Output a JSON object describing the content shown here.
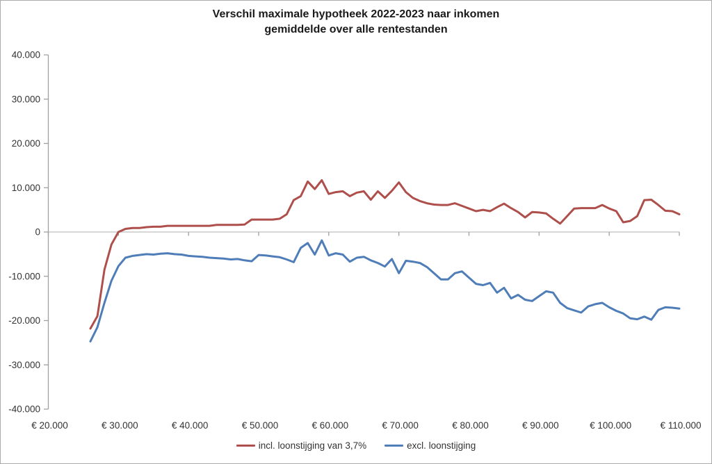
{
  "title": "Verschil maximale hypotheek 2022-2023 naar inkomen",
  "subtitle": "gemiddelde over alle rentestanden",
  "legend": {
    "incl_label": "incl. loonstijging van 3,7%",
    "excl_label": "excl. loonstijging"
  },
  "colors": {
    "incl_series": "#AE4F4B",
    "excl_series": "#4E7DB7",
    "zero_line": "#BFBFBF",
    "axis": "#A0A0A0",
    "text": "#333333"
  },
  "chart_data": {
    "type": "line",
    "title": "Verschil maximale hypotheek 2022-2023 naar inkomen",
    "subtitle": "gemiddelde over alle rentestanden",
    "xlabel": "",
    "ylabel": "",
    "grid": "zero-line-only",
    "legend_position": "bottom-center",
    "x_axis": {
      "min": 20000,
      "max": 110000,
      "step": 10000,
      "tick_labels": [
        "€ 20.000",
        "€ 30.000",
        "€ 40.000",
        "€ 50.000",
        "€ 60.000",
        "€ 70.000",
        "€ 80.000",
        "€ 90.000",
        "€ 100.000",
        "€ 110.000"
      ]
    },
    "y_axis": {
      "min": -40000,
      "max": 40000,
      "step": 10000,
      "tick_labels": [
        "40.000",
        "30.000",
        "20.000",
        "10.000",
        "0",
        "-10.000",
        "-20.000",
        "-30.000",
        "-40.000"
      ]
    },
    "x": [
      26000,
      27000,
      28000,
      29000,
      30000,
      31000,
      32000,
      33000,
      34000,
      35000,
      36000,
      37000,
      38000,
      39000,
      40000,
      41000,
      42000,
      43000,
      44000,
      45000,
      46000,
      47000,
      48000,
      49000,
      50000,
      51000,
      52000,
      53000,
      54000,
      55000,
      56000,
      57000,
      58000,
      59000,
      60000,
      61000,
      62000,
      63000,
      64000,
      65000,
      66000,
      67000,
      68000,
      69000,
      70000,
      71000,
      72000,
      73000,
      74000,
      75000,
      76000,
      77000,
      78000,
      79000,
      80000,
      81000,
      82000,
      83000,
      84000,
      85000,
      86000,
      87000,
      88000,
      89000,
      90000,
      91000,
      92000,
      93000,
      94000,
      95000,
      96000,
      97000,
      98000,
      99000,
      100000,
      101000,
      102000,
      103000,
      104000,
      105000,
      106000,
      107000,
      108000,
      109000,
      110000
    ],
    "series": [
      {
        "name": "incl. loonstijging van 3,7%",
        "color": "#AE4F4B",
        "values": [
          -21800,
          -19000,
          -8500,
          -2800,
          0,
          700,
          900,
          900,
          1100,
          1200,
          1200,
          1400,
          1400,
          1400,
          1400,
          1400,
          1400,
          1400,
          1600,
          1600,
          1600,
          1600,
          1700,
          2800,
          2800,
          2800,
          2800,
          3000,
          4000,
          7200,
          8100,
          11400,
          9700,
          11700,
          8600,
          9000,
          9200,
          8100,
          8900,
          9200,
          7300,
          9200,
          7700,
          9300,
          11200,
          9000,
          7700,
          7000,
          6500,
          6200,
          6100,
          6100,
          6500,
          5900,
          5300,
          4700,
          5000,
          4700,
          5600,
          6400,
          5400,
          4500,
          3300,
          4500,
          4400,
          4200,
          3000,
          1900,
          3600,
          5300,
          5400,
          5400,
          5400,
          6100,
          5300,
          4700,
          2200,
          2500,
          3600,
          7200,
          7300,
          6100,
          4800,
          4700,
          4000
        ]
      },
      {
        "name": "excl. loonstijging",
        "color": "#4E7DB7",
        "values": [
          -24700,
          -21500,
          -16000,
          -11000,
          -7700,
          -5800,
          -5400,
          -5200,
          -5000,
          -5100,
          -4900,
          -4800,
          -5000,
          -5100,
          -5400,
          -5500,
          -5600,
          -5800,
          -5900,
          -6000,
          -6200,
          -6100,
          -6400,
          -6600,
          -5200,
          -5300,
          -5500,
          -5700,
          -6200,
          -6800,
          -3600,
          -2500,
          -5100,
          -1900,
          -5300,
          -4800,
          -5100,
          -6700,
          -5800,
          -5600,
          -6400,
          -7000,
          -7800,
          -6100,
          -9300,
          -6500,
          -6700,
          -7000,
          -7900,
          -9300,
          -10700,
          -10700,
          -9300,
          -8900,
          -10300,
          -11700,
          -12000,
          -11500,
          -13700,
          -12600,
          -15000,
          -14200,
          -15300,
          -15600,
          -14500,
          -13400,
          -13700,
          -16000,
          -17200,
          -17700,
          -18200,
          -16800,
          -16300,
          -16000,
          -17000,
          -17800,
          -18400,
          -19500,
          -19700,
          -19100,
          -19800,
          -17600,
          -17000,
          -17100,
          -17300
        ]
      }
    ]
  }
}
